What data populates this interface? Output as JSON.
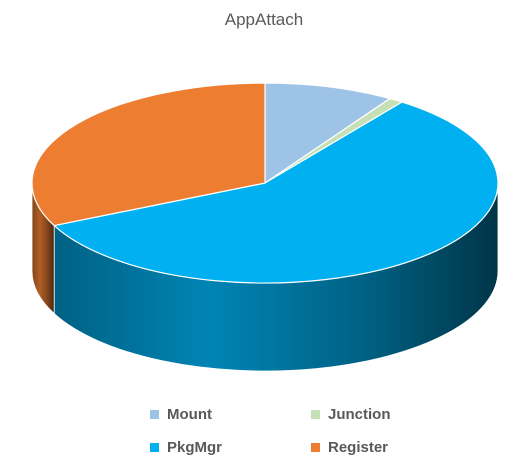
{
  "chart_data": {
    "type": "pie",
    "style": "3d",
    "title": "AppAttach",
    "slices": [
      {
        "label": "Mount",
        "value": 9.0,
        "color": "#9dc3e6"
      },
      {
        "label": "Junction",
        "value": 1.0,
        "color": "#c5e0b4"
      },
      {
        "label": "PkgMgr",
        "value": 58.0,
        "color": "#00b0f0"
      },
      {
        "label": "Register",
        "value": 32.0,
        "color": "#ed7d31"
      }
    ],
    "legend_placement": "bottom"
  }
}
